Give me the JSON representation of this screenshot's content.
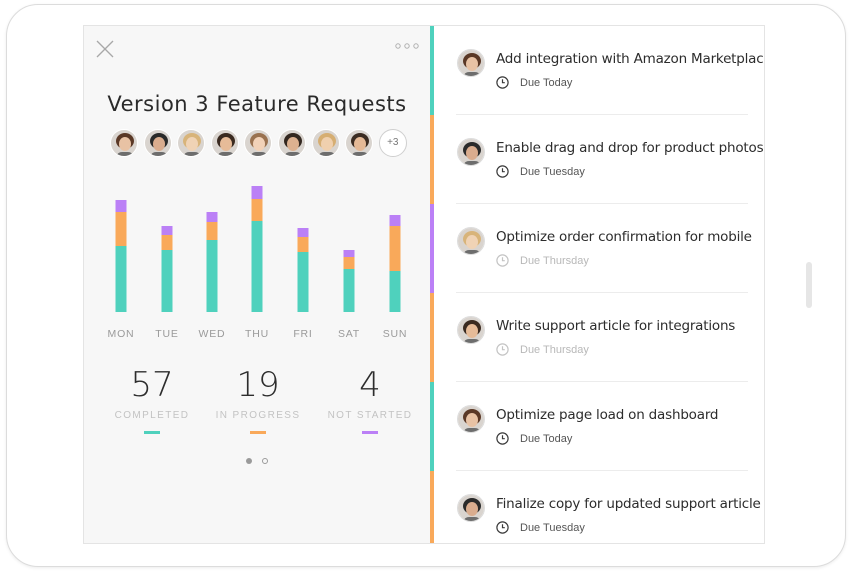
{
  "panel": {
    "title": "Version 3 Feature Requests",
    "more_avatars": "+3"
  },
  "avatars": [
    {
      "name": "avatar-1",
      "skin": "#e8c2a4",
      "hair": "#5a3826"
    },
    {
      "name": "avatar-2",
      "skin": "#d9ac8e",
      "hair": "#2a2a2a"
    },
    {
      "name": "avatar-3",
      "skin": "#f0d3b5",
      "hair": "#d8b47a"
    },
    {
      "name": "avatar-4",
      "skin": "#e6bb98",
      "hair": "#3a2a20"
    },
    {
      "name": "avatar-5",
      "skin": "#f2d2b8",
      "hair": "#9a7250"
    },
    {
      "name": "avatar-6",
      "skin": "#dcb190",
      "hair": "#332820"
    },
    {
      "name": "avatar-7",
      "skin": "#f0d0ae",
      "hair": "#d6ae72"
    },
    {
      "name": "avatar-8",
      "skin": "#e4b996",
      "hair": "#3b2c22"
    }
  ],
  "chart_data": {
    "type": "bar",
    "stacked": true,
    "categories": [
      "MON",
      "TUE",
      "WED",
      "THU",
      "FRI",
      "SAT",
      "SUN"
    ],
    "series": [
      {
        "color": "#4fd1bd",
        "values": [
          66,
          62,
          72,
          91,
          60,
          43,
          41
        ]
      },
      {
        "color": "#f9a95a",
        "values": [
          34,
          15,
          18,
          22,
          15,
          12,
          45
        ]
      },
      {
        "color": "#bb80f6",
        "values": [
          12,
          9,
          10,
          13,
          9,
          7,
          11
        ]
      }
    ],
    "ylim": [
      0,
      130
    ],
    "grid": false,
    "legend": "none"
  },
  "stats": [
    {
      "value": "57",
      "label": "COMPLETED",
      "color": "#4fd1bd"
    },
    {
      "value": "19",
      "label": "IN PROGRESS",
      "color": "#f9a95a"
    },
    {
      "value": "4",
      "label": "NOT STARTED",
      "color": "#bb80f6"
    }
  ],
  "pagination": {
    "total": 2,
    "current": 0
  },
  "tasks": [
    {
      "title": "Add integration with Amazon Marketplace",
      "due": "Due Today",
      "status_color": "#4fd1bd",
      "active": true,
      "skin": "#e8c2a4",
      "hair": "#5a3826"
    },
    {
      "title": "Enable drag and drop for product photos",
      "due": "Due Tuesday",
      "status_color": "#f9a95a",
      "active": true,
      "skin": "#d9ac8e",
      "hair": "#2a2a2a"
    },
    {
      "title": "Optimize order confirmation for mobile",
      "due": "Due Thursday",
      "status_color": "#bb80f6",
      "active": false,
      "skin": "#f0d3b5",
      "hair": "#d8b47a"
    },
    {
      "title": "Write support article for integrations",
      "due": "Due Thursday",
      "status_color": "#f9a95a",
      "active": false,
      "skin": "#e6bb98",
      "hair": "#3a2a20"
    },
    {
      "title": "Optimize page load on dashboard",
      "due": "Due Today",
      "status_color": "#4fd1bd",
      "active": true,
      "skin": "#e8c2a4",
      "hair": "#5a3826"
    },
    {
      "title": "Finalize copy for updated support article",
      "due": "Due Tuesday",
      "status_color": "#f9a95a",
      "active": true,
      "skin": "#d9ac8e",
      "hair": "#2a2a2a"
    }
  ],
  "icons": {
    "close": "close-icon",
    "more": "more-horizontal-icon",
    "clock": "clock-icon"
  }
}
